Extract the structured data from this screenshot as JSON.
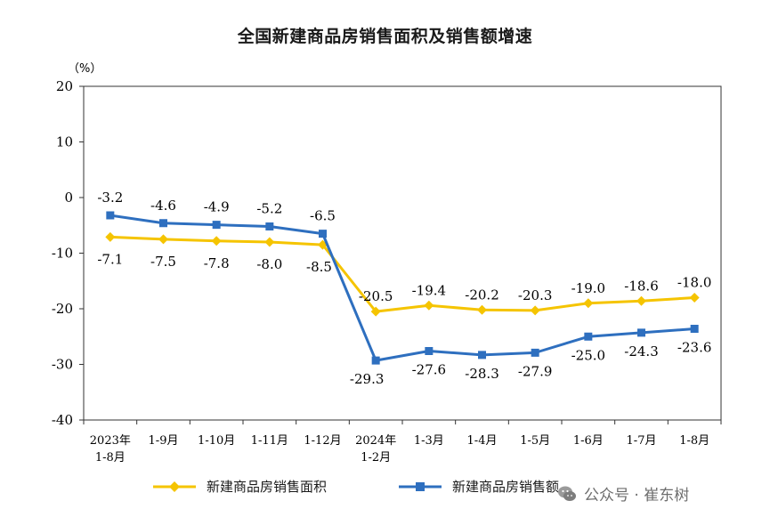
{
  "chart_data": {
    "type": "line",
    "title": "全国新建商品房销售面积及销售额增速",
    "ylabel": "（%）",
    "xlabel": "",
    "ylim": [
      -40,
      20
    ],
    "yticks": [
      20,
      10,
      0,
      -10,
      -20,
      -30,
      -40
    ],
    "categories": [
      "2023年\n1-8月",
      "1-9月",
      "1-10月",
      "1-11月",
      "1-12月",
      "2024年\n1-2月",
      "1-3月",
      "1-4月",
      "1-5月",
      "1-6月",
      "1-7月",
      "1-8月"
    ],
    "series": [
      {
        "name": "新建商品房销售面积",
        "color": "#f5c400",
        "marker": "diamond",
        "values": [
          -7.1,
          -7.5,
          -7.8,
          -8.0,
          -8.5,
          -20.5,
          -19.4,
          -20.2,
          -20.3,
          -19.0,
          -18.6,
          -18.0
        ],
        "labels": [
          "-7.1",
          "-7.5",
          "-7.8",
          "-8.0",
          "-8.5",
          "-20.5",
          "-19.4",
          "-20.2",
          "-20.3",
          "-19.0",
          "-18.6",
          "-18.0"
        ]
      },
      {
        "name": "新建商品房销售额",
        "color": "#2e6fbf",
        "marker": "square",
        "values": [
          -3.2,
          -4.6,
          -4.9,
          -5.2,
          -6.5,
          -29.3,
          -27.6,
          -28.3,
          -27.9,
          -25.0,
          -24.3,
          -23.6
        ],
        "labels": [
          "-3.2",
          "-4.6",
          "-4.9",
          "-5.2",
          "-6.5",
          "-29.3",
          "-27.6",
          "-28.3",
          "-27.9",
          "-25.0",
          "-24.3",
          "-23.6"
        ]
      }
    ],
    "grid": false,
    "legend": "bottom"
  },
  "watermark": {
    "text": "公众号 · 崔东树",
    "icon": "wechat-icon"
  }
}
